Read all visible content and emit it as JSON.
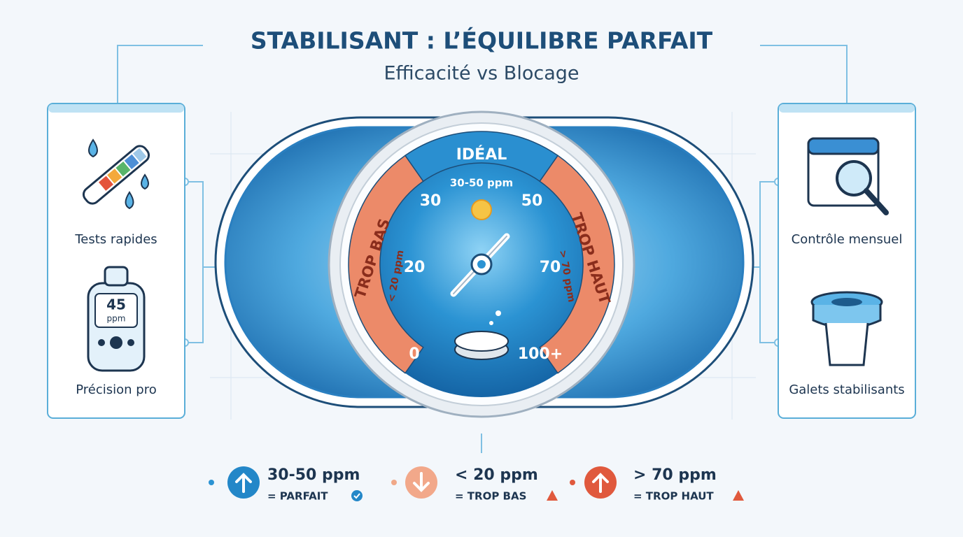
{
  "header": {
    "title": "STABILISANT : L’ÉQUILIBRE PARFAIT",
    "subtitle": "Efficacité vs Blocage"
  },
  "gauge": {
    "ideal_label": "IDÉAL",
    "ideal_range": "30-50 ppm",
    "low_label": "TROP BAS",
    "low_range": "< 20 ppm",
    "high_label": "TROP HAUT",
    "high_range": "> 70 ppm",
    "scale": [
      30,
      50,
      20,
      70,
      0,
      "100+"
    ]
  },
  "left_panel": {
    "items": [
      {
        "label": "Tests rapides"
      },
      {
        "label": "Précision pro",
        "display_value": 45,
        "display_unit": "ppm"
      }
    ]
  },
  "right_panel": {
    "items": [
      {
        "label": "Contrôle mensuel"
      },
      {
        "label": "Galets stabilisants"
      }
    ]
  },
  "legend": [
    {
      "range": "30-50 ppm",
      "status": "= PARFAIT"
    },
    {
      "range": "< 20 ppm",
      "status": "= TROP BAS"
    },
    {
      "range": "> 70 ppm",
      "status": "= TROP HAUT"
    }
  ]
}
